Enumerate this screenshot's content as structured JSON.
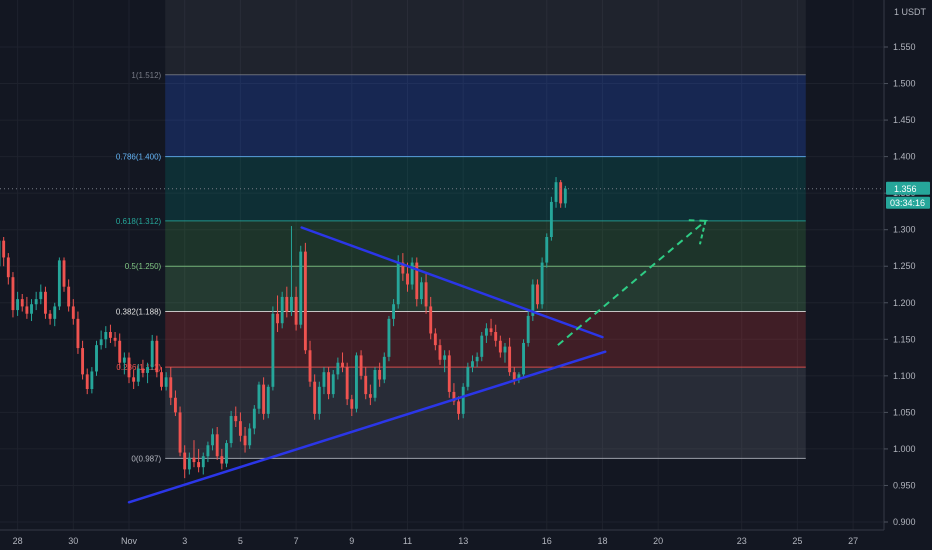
{
  "chart_data": {
    "type": "candlestick",
    "y_axis": {
      "unit": "USDT",
      "range": [
        0.895,
        1.59
      ],
      "ticks": [
        "1.550",
        "1.500",
        "1.450",
        "1.400",
        "1.350",
        "1.300",
        "1.250",
        "1.200",
        "1.150",
        "1.100",
        "1.050",
        "1.000",
        "0.950",
        "0.900"
      ],
      "position": "right"
    },
    "x_axis": {
      "ticks": [
        {
          "label": "28",
          "day": -4
        },
        {
          "label": "30",
          "day": -2
        },
        {
          "label": "Nov",
          "day": 0
        },
        {
          "label": "3",
          "day": 2
        },
        {
          "label": "5",
          "day": 4
        },
        {
          "label": "7",
          "day": 6
        },
        {
          "label": "9",
          "day": 8
        },
        {
          "label": "11",
          "day": 10
        },
        {
          "label": "13",
          "day": 12
        },
        {
          "label": "16",
          "day": 15
        },
        {
          "label": "18",
          "day": 17
        },
        {
          "label": "20",
          "day": 19
        },
        {
          "label": "23",
          "day": 22
        },
        {
          "label": "25",
          "day": 24
        },
        {
          "label": "27",
          "day": 26
        }
      ]
    },
    "grid": true,
    "current_price": {
      "label": "1.356",
      "value": 1.356,
      "countdown": "03:34:16"
    },
    "fibonacci": {
      "start_day": 1.3,
      "end_day": 24.3,
      "levels": [
        {
          "label": "1(1.512)",
          "value": 1.512,
          "color": "#787b86"
        },
        {
          "label": "0.786(1.400)",
          "value": 1.4,
          "color": "#64b5f6"
        },
        {
          "label": "0.618(1.312)",
          "value": 1.312,
          "color": "#26a69a"
        },
        {
          "label": "0.5(1.250)",
          "value": 1.25,
          "color": "#81c784"
        },
        {
          "label": "0.382(1.188)",
          "value": 1.188,
          "color": "#e0e0e0"
        },
        {
          "label": "0.236(1.112)",
          "value": 1.112,
          "color": "#ef5350"
        },
        {
          "label": "0(0.987)",
          "value": 0.987,
          "color": "#b2b5be"
        }
      ],
      "zones": [
        {
          "from": 1.4,
          "to": 1.512,
          "color": "#2962ff"
        },
        {
          "from": 1.312,
          "to": 1.4,
          "color": "#00897b"
        },
        {
          "from": 1.25,
          "to": 1.312,
          "color": "#43a047"
        },
        {
          "from": 1.188,
          "to": 1.25,
          "color": "#66bb6a"
        },
        {
          "from": 1.112,
          "to": 1.188,
          "color": "#e53935"
        },
        {
          "from": 0.987,
          "to": 1.112,
          "color": "#787b86"
        }
      ]
    },
    "trendlines": [
      {
        "name": "upper",
        "color": "#2b36e8",
        "x1": 6.2,
        "y1": 1.303,
        "x2": 17.0,
        "y2": 1.153
      },
      {
        "name": "lower",
        "color": "#2b36e8",
        "x1": 0.0,
        "y1": 0.927,
        "x2": 17.1,
        "y2": 1.133
      }
    ],
    "projection": {
      "color": "#2ecc85",
      "points": [
        [
          15.4,
          1.142
        ],
        [
          20.7,
          1.312
        ],
        [
          20.1,
          1.313
        ]
      ],
      "arrow_end": [
        20.5,
        1.28
      ]
    },
    "candles_per_day": 6,
    "first_candle_day": -5.0,
    "candles": [
      [
        1.29,
        1.3,
        1.26,
        1.272
      ],
      [
        1.272,
        1.282,
        1.24,
        1.25
      ],
      [
        1.25,
        1.295,
        1.245,
        1.285
      ],
      [
        1.285,
        1.29,
        1.25,
        1.262
      ],
      [
        1.262,
        1.268,
        1.225,
        1.235
      ],
      [
        1.235,
        1.242,
        1.18,
        1.19
      ],
      [
        1.19,
        1.215,
        1.182,
        1.205
      ],
      [
        1.205,
        1.212,
        1.188,
        1.195
      ],
      [
        1.195,
        1.208,
        1.178,
        1.185
      ],
      [
        1.185,
        1.205,
        1.175,
        1.198
      ],
      [
        1.198,
        1.215,
        1.19,
        1.205
      ],
      [
        1.205,
        1.225,
        1.198,
        1.215
      ],
      [
        1.215,
        1.222,
        1.178,
        1.185
      ],
      [
        1.185,
        1.19,
        1.17,
        1.178
      ],
      [
        1.178,
        1.2,
        1.168,
        1.195
      ],
      [
        1.195,
        1.262,
        1.19,
        1.258
      ],
      [
        1.258,
        1.262,
        1.215,
        1.222
      ],
      [
        1.222,
        1.232,
        1.188,
        1.195
      ],
      [
        1.195,
        1.205,
        1.17,
        1.178
      ],
      [
        1.178,
        1.188,
        1.13,
        1.138
      ],
      [
        1.138,
        1.148,
        1.095,
        1.102
      ],
      [
        1.102,
        1.11,
        1.075,
        1.082
      ],
      [
        1.082,
        1.112,
        1.076,
        1.106
      ],
      [
        1.106,
        1.148,
        1.1,
        1.142
      ],
      [
        1.142,
        1.162,
        1.136,
        1.15
      ],
      [
        1.15,
        1.168,
        1.138,
        1.16
      ],
      [
        1.16,
        1.17,
        1.145,
        1.152
      ],
      [
        1.152,
        1.16,
        1.14,
        1.148
      ],
      [
        1.148,
        1.158,
        1.11,
        1.118
      ],
      [
        1.118,
        1.132,
        1.102,
        1.125
      ],
      [
        1.125,
        1.132,
        1.09,
        1.098
      ],
      [
        1.098,
        1.108,
        1.082,
        1.092
      ],
      [
        1.092,
        1.116,
        1.086,
        1.11
      ],
      [
        1.11,
        1.122,
        1.098,
        1.104
      ],
      [
        1.104,
        1.118,
        1.09,
        1.112
      ],
      [
        1.112,
        1.156,
        1.108,
        1.148
      ],
      [
        1.148,
        1.155,
        1.098,
        1.105
      ],
      [
        1.105,
        1.112,
        1.08,
        1.085
      ],
      [
        1.085,
        1.105,
        1.08,
        1.098
      ],
      [
        1.098,
        1.112,
        1.06,
        1.07
      ],
      [
        1.07,
        1.08,
        1.045,
        1.05
      ],
      [
        1.05,
        1.058,
        0.99,
        0.995
      ],
      [
        0.995,
        1.005,
        0.96,
        0.972
      ],
      [
        0.972,
        0.995,
        0.965,
        0.988
      ],
      [
        0.988,
        1.012,
        0.975,
        0.982
      ],
      [
        0.982,
        1.0,
        0.968,
        0.975
      ],
      [
        0.975,
        0.995,
        0.965,
        0.99
      ],
      [
        0.99,
        1.01,
        0.982,
        1.005
      ],
      [
        1.005,
        1.028,
        0.998,
        1.02
      ],
      [
        1.02,
        1.03,
        0.985,
        0.99
      ],
      [
        0.99,
        1.0,
        0.972,
        0.98
      ],
      [
        0.98,
        1.012,
        0.975,
        1.008
      ],
      [
        1.008,
        1.052,
        1.002,
        1.045
      ],
      [
        1.045,
        1.058,
        1.03,
        1.038
      ],
      [
        1.038,
        1.05,
        1.01,
        1.018
      ],
      [
        1.018,
        1.03,
        0.995,
        1.005
      ],
      [
        1.005,
        1.035,
        1.0,
        1.028
      ],
      [
        1.028,
        1.06,
        1.02,
        1.055
      ],
      [
        1.055,
        1.092,
        1.048,
        1.088
      ],
      [
        1.088,
        1.098,
        1.04,
        1.048
      ],
      [
        1.048,
        1.088,
        1.042,
        1.085
      ],
      [
        1.085,
        1.195,
        1.08,
        1.185
      ],
      [
        1.185,
        1.21,
        1.16,
        1.172
      ],
      [
        1.172,
        1.215,
        1.165,
        1.208
      ],
      [
        1.208,
        1.222,
        1.18,
        1.188
      ],
      [
        1.188,
        1.305,
        1.182,
        1.208
      ],
      [
        1.208,
        1.222,
        1.162,
        1.17
      ],
      [
        1.17,
        1.278,
        1.165,
        1.27
      ],
      [
        1.27,
        1.282,
        1.13,
        1.135
      ],
      [
        1.135,
        1.148,
        1.085,
        1.092
      ],
      [
        1.092,
        1.102,
        1.04,
        1.048
      ],
      [
        1.048,
        1.092,
        1.04,
        1.085
      ],
      [
        1.085,
        1.112,
        1.075,
        1.105
      ],
      [
        1.105,
        1.112,
        1.068,
        1.075
      ],
      [
        1.075,
        1.108,
        1.07,
        1.102
      ],
      [
        1.102,
        1.125,
        1.095,
        1.118
      ],
      [
        1.118,
        1.132,
        1.105,
        1.112
      ],
      [
        1.112,
        1.118,
        1.06,
        1.068
      ],
      [
        1.068,
        1.074,
        1.045,
        1.055
      ],
      [
        1.055,
        1.132,
        1.05,
        1.128
      ],
      [
        1.128,
        1.135,
        1.095,
        1.1
      ],
      [
        1.1,
        1.112,
        1.068,
        1.075
      ],
      [
        1.075,
        1.088,
        1.06,
        1.07
      ],
      [
        1.07,
        1.112,
        1.065,
        1.108
      ],
      [
        1.108,
        1.118,
        1.085,
        1.095
      ],
      [
        1.095,
        1.132,
        1.09,
        1.126
      ],
      [
        1.126,
        1.182,
        1.12,
        1.178
      ],
      [
        1.178,
        1.205,
        1.168,
        1.198
      ],
      [
        1.198,
        1.265,
        1.192,
        1.255
      ],
      [
        1.255,
        1.268,
        1.23,
        1.24
      ],
      [
        1.24,
        1.255,
        1.215,
        1.225
      ],
      [
        1.225,
        1.262,
        1.218,
        1.255
      ],
      [
        1.255,
        1.262,
        1.195,
        1.205
      ],
      [
        1.205,
        1.235,
        1.198,
        1.228
      ],
      [
        1.228,
        1.24,
        1.185,
        1.195
      ],
      [
        1.195,
        1.208,
        1.15,
        1.158
      ],
      [
        1.158,
        1.165,
        1.135,
        1.142
      ],
      [
        1.142,
        1.15,
        1.115,
        1.122
      ],
      [
        1.122,
        1.135,
        1.105,
        1.128
      ],
      [
        1.128,
        1.135,
        1.07,
        1.078
      ],
      [
        1.078,
        1.09,
        1.06,
        1.065
      ],
      [
        1.065,
        1.072,
        1.04,
        1.048
      ],
      [
        1.048,
        1.09,
        1.042,
        1.085
      ],
      [
        1.085,
        1.118,
        1.08,
        1.112
      ],
      [
        1.112,
        1.128,
        1.105,
        1.12
      ],
      [
        1.12,
        1.132,
        1.112,
        1.126
      ],
      [
        1.126,
        1.16,
        1.12,
        1.155
      ],
      [
        1.155,
        1.172,
        1.145,
        1.165
      ],
      [
        1.165,
        1.178,
        1.155,
        1.16
      ],
      [
        1.16,
        1.17,
        1.14,
        1.148
      ],
      [
        1.148,
        1.155,
        1.125,
        1.132
      ],
      [
        1.132,
        1.145,
        1.118,
        1.14
      ],
      [
        1.14,
        1.152,
        1.1,
        1.105
      ],
      [
        1.105,
        1.112,
        1.088,
        1.095
      ],
      [
        1.095,
        1.105,
        1.09,
        1.102
      ],
      [
        1.102,
        1.15,
        1.098,
        1.145
      ],
      [
        1.145,
        1.188,
        1.14,
        1.182
      ],
      [
        1.182,
        1.232,
        1.175,
        1.225
      ],
      [
        1.225,
        1.232,
        1.192,
        1.198
      ],
      [
        1.198,
        1.262,
        1.192,
        1.255
      ],
      [
        1.255,
        1.295,
        1.248,
        1.29
      ],
      [
        1.29,
        1.345,
        1.285,
        1.338
      ],
      [
        1.338,
        1.372,
        1.33,
        1.365
      ],
      [
        1.365,
        1.368,
        1.33,
        1.336
      ],
      [
        1.336,
        1.36,
        1.33,
        1.356
      ]
    ]
  }
}
